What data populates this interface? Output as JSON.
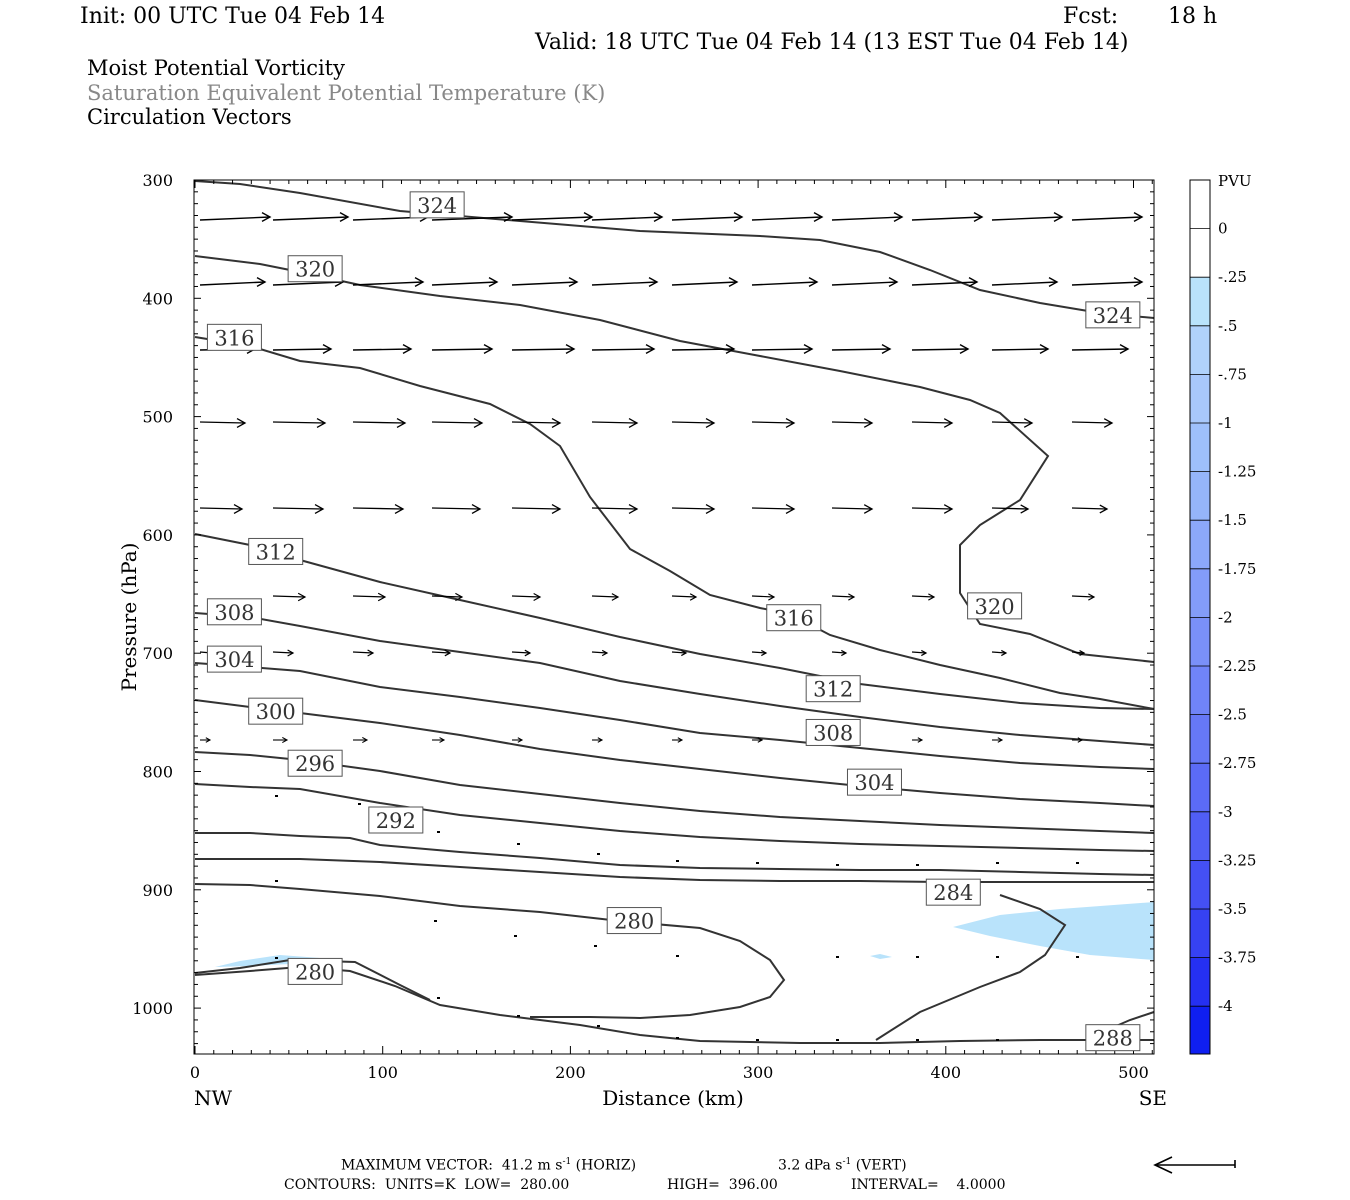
{
  "header": {
    "init": "Init: 00 UTC Tue 04 Feb 14",
    "fcst_label": "Fcst:",
    "fcst_value": "18 h",
    "valid": "Valid: 18 UTC Tue 04 Feb 14 (13 EST Tue 04 Feb 14)"
  },
  "fields": {
    "field1": "Moist Potential Vorticity",
    "field2": "Saturation Equivalent Potential Temperature (K)",
    "field3": "Circulation Vectors"
  },
  "colors": {
    "contour": "#333333",
    "negative_pv": "#b9e3fb",
    "vectors": "#000000",
    "gray_text": "#888888"
  },
  "chart_data": {
    "type": "cross-section",
    "xlabel": "Distance (km)",
    "ylabel": "Pressure (hPa)",
    "xlim": [
      0,
      512
    ],
    "ylim": [
      300,
      1030
    ],
    "x_ticks": [
      0,
      100,
      200,
      300,
      400,
      500
    ],
    "y_ticks": [
      300,
      400,
      500,
      600,
      700,
      800,
      900,
      1000
    ],
    "x_end_labels": {
      "left": "NW",
      "right": "SE"
    },
    "contour_labels": [
      {
        "text": "324",
        "x": 129,
        "p": 321
      },
      {
        "text": "324",
        "x": 489,
        "p": 414
      },
      {
        "text": "320",
        "x": 64,
        "p": 375
      },
      {
        "text": "320",
        "x": 426,
        "p": 660
      },
      {
        "text": "316",
        "x": 21,
        "p": 433
      },
      {
        "text": "316",
        "x": 319,
        "p": 670
      },
      {
        "text": "312",
        "x": 43,
        "p": 614
      },
      {
        "text": "312",
        "x": 340,
        "p": 730
      },
      {
        "text": "308",
        "x": 21,
        "p": 665
      },
      {
        "text": "308",
        "x": 340,
        "p": 767
      },
      {
        "text": "304",
        "x": 21,
        "p": 705
      },
      {
        "text": "304",
        "x": 362,
        "p": 809
      },
      {
        "text": "300",
        "x": 43,
        "p": 749
      },
      {
        "text": "296",
        "x": 64,
        "p": 793
      },
      {
        "text": "292",
        "x": 107,
        "p": 841
      },
      {
        "text": "284",
        "x": 404,
        "p": 902
      },
      {
        "text": "280",
        "x": 234,
        "p": 926
      },
      {
        "text": "280",
        "x": 64,
        "p": 969
      },
      {
        "text": "288",
        "x": 489,
        "p": 1025
      }
    ],
    "colorbar": {
      "label": "PVU",
      "tick_labels": [
        "0",
        "-.25",
        "-.5",
        "-.75",
        "-1",
        "-1.25",
        "-1.5",
        "-1.75",
        "-2",
        "-2.25",
        "-2.5",
        "-2.75",
        "-3",
        "-3.25",
        "-3.5",
        "-3.75",
        "-4"
      ],
      "colors": [
        "#ffffff",
        "#ffffff",
        "#b9e3fb",
        "#b0d2fb",
        "#a8c8fb",
        "#9ec0fb",
        "#95b5fa",
        "#8ca8fa",
        "#839cf9",
        "#7a90f8",
        "#7084f8",
        "#6678f7",
        "#5b6bf6",
        "#505ef5",
        "#4450f4",
        "#3642f3",
        "#2530f2",
        "#0f1ff1"
      ]
    }
  },
  "footer": {
    "max_vector_label": "MAXIMUM VECTOR:",
    "horiz_val": "41.2",
    "horiz_unit": "m s",
    "horiz_exp": "-1",
    "horiz_tag": "(HORIZ)",
    "vert_val": "3.2",
    "vert_unit": "dPa s",
    "vert_exp": "-1",
    "vert_tag": "(VERT)",
    "contours_label": "CONTOURS:",
    "units": "UNITS=K",
    "low_label": "LOW=",
    "low_value": "280.00",
    "high_label": "HIGH=",
    "high_value": "396.00",
    "interval_label": "INTERVAL=",
    "interval_value": "4.0000"
  }
}
